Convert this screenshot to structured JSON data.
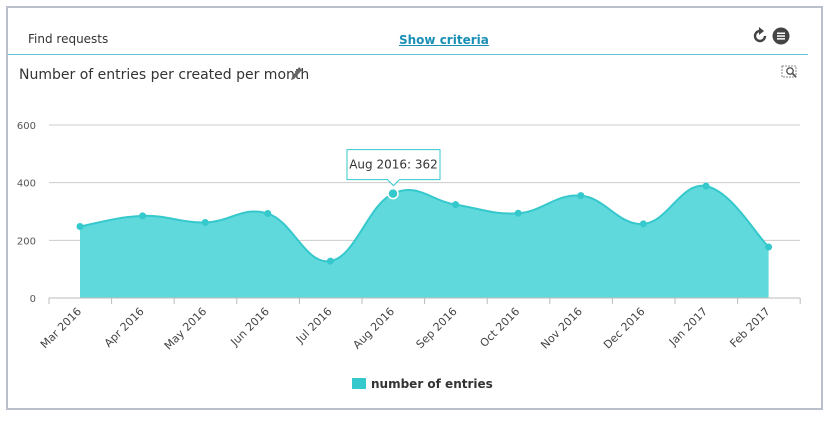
{
  "toolbar": {
    "find_label": "Find requests",
    "criteria_label": "Show criteria",
    "refresh_icon": "refresh-icon",
    "menu_icon": "menu-icon"
  },
  "chart_title": "Number of entries per created per month",
  "colors": {
    "series": "#35c8cc",
    "series_fill": "#5fd9dc",
    "accent": "#1a8fb5",
    "grid": "#cccccc"
  },
  "chart_data": {
    "type": "area",
    "categories": [
      "Mar 2016",
      "Apr 2016",
      "May 2016",
      "Jun 2016",
      "Jul 2016",
      "Aug 2016",
      "Sep 2016",
      "Oct 2016",
      "Nov 2016",
      "Dec 2016",
      "Jan 2017",
      "Feb 2017"
    ],
    "series": [
      {
        "name": "number of entries",
        "values": [
          248,
          285,
          262,
          293,
          128,
          362,
          324,
          294,
          355,
          257,
          388,
          177
        ]
      }
    ],
    "ylim": [
      0,
      600
    ],
    "yticks": [
      0,
      200,
      400,
      600
    ],
    "grid": true,
    "legend": "bottom",
    "tooltip": {
      "text": "Aug 2016: 362",
      "category": "Aug 2016"
    }
  }
}
